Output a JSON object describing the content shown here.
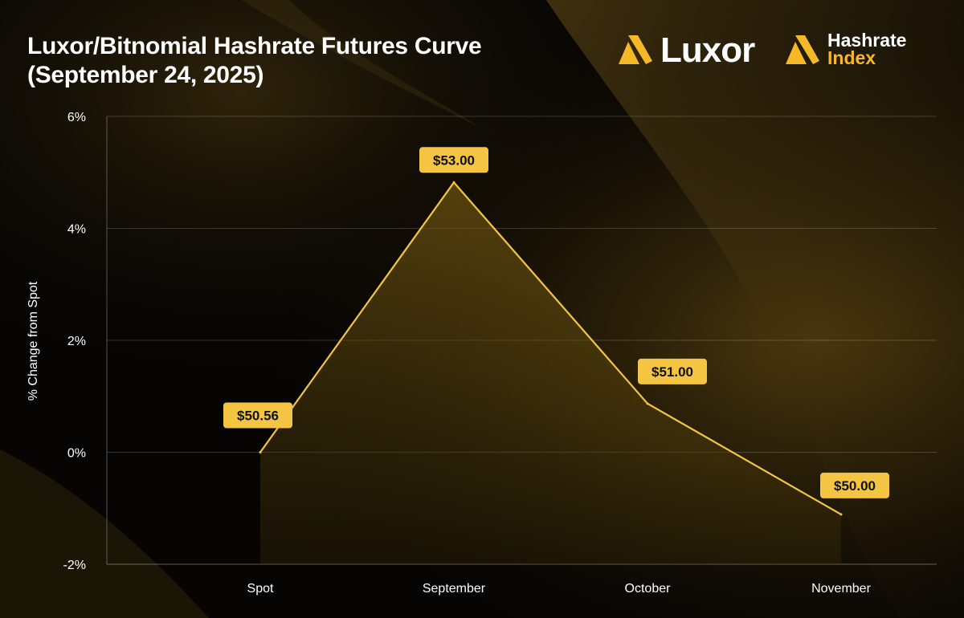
{
  "header": {
    "title_line1": "Luxor/Bitnomial Hashrate Futures Curve",
    "title_line2": "(September 24, 2025)"
  },
  "logos": {
    "luxor": "Luxor",
    "hashrate_index_line1": "Hashrate",
    "hashrate_index_line2": "Index",
    "brand_color": "#f4b829"
  },
  "chart_data": {
    "type": "area",
    "title": "Luxor/Bitnomial Hashrate Futures Curve (September 24, 2025)",
    "xlabel": "",
    "ylabel": "% Change from Spot",
    "categories": [
      "Spot",
      "September",
      "October",
      "November"
    ],
    "series": [
      {
        "values": [
          0.0,
          4.82,
          0.87,
          -1.11
        ],
        "data_labels": [
          "$50.56",
          "$53.00",
          "$51.00",
          "$50.00"
        ],
        "color": "#f4c542"
      }
    ],
    "ylim": [
      -2,
      6
    ],
    "yticks": [
      -2,
      0,
      2,
      4,
      6
    ],
    "ytick_labels": [
      "-2%",
      "0%",
      "2%",
      "4%",
      "6%"
    ],
    "grid": true,
    "label_badge_color": "#f4c542"
  }
}
